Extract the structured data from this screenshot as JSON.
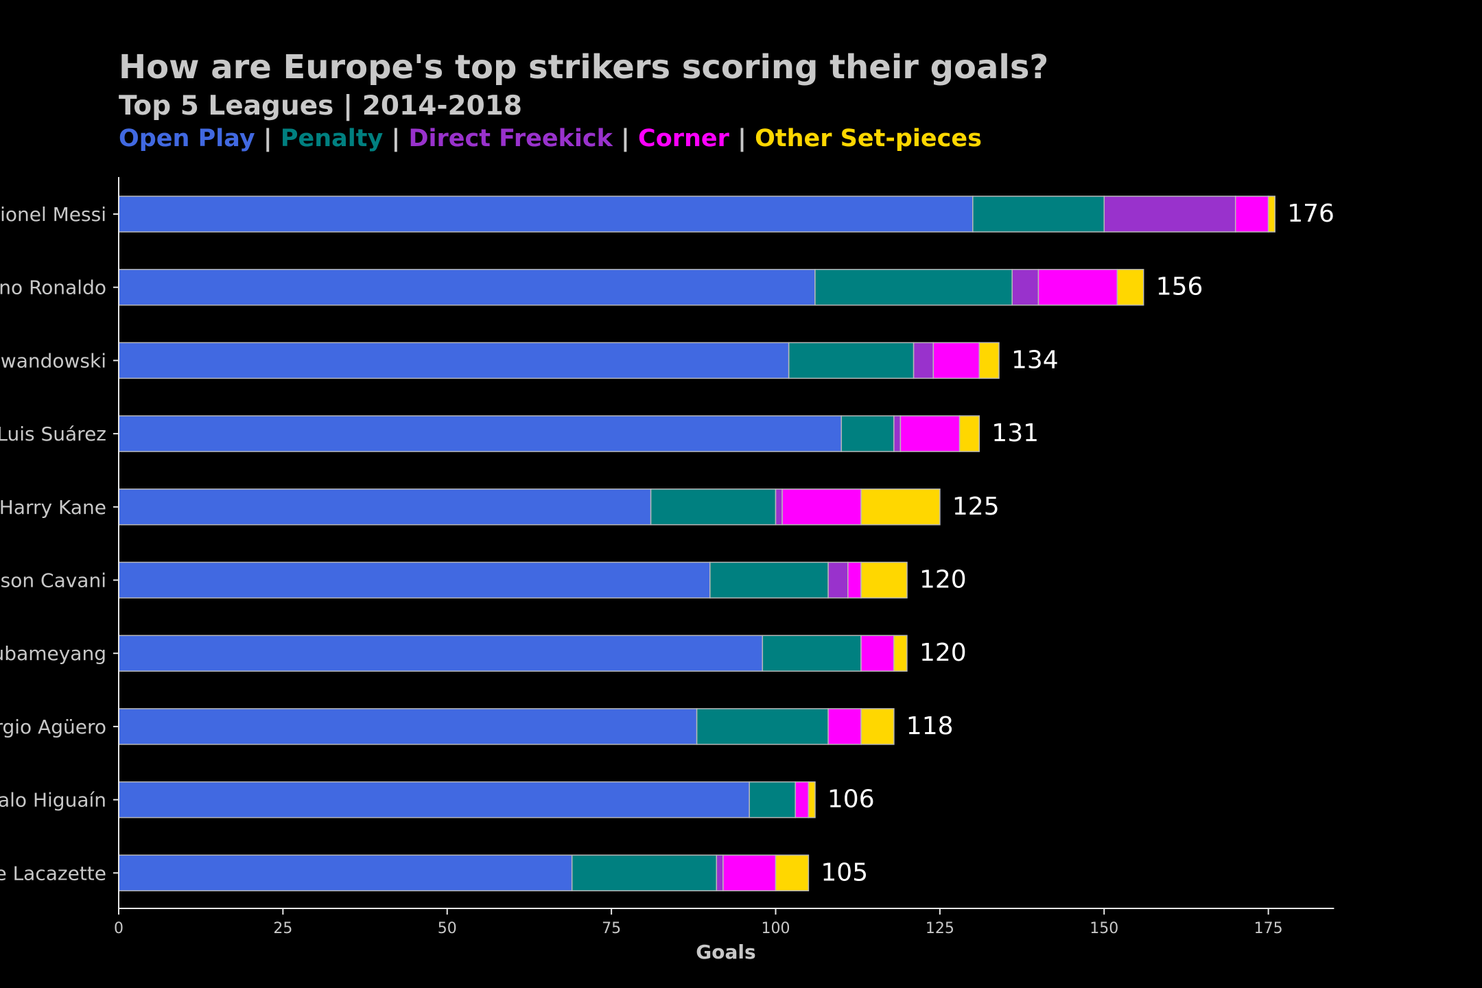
{
  "chart_data": {
    "type": "bar",
    "orientation": "horizontal",
    "stacked": true,
    "title": "How are Europe's top strikers scoring their goals?",
    "subtitle": "Top 5 Leagues | 2014-2018",
    "xlabel": "Goals",
    "ylabel": "",
    "xlim": [
      0,
      185
    ],
    "xticks": [
      0,
      25,
      50,
      75,
      100,
      125,
      150,
      175
    ],
    "grid": false,
    "legend_separator": "|",
    "categories": [
      "Lionel Messi",
      "Cristiano Ronaldo",
      "Robert Lewandowski",
      "Luis Suárez",
      "Harry Kane",
      "Edinson Cavani",
      "Pierre-Emerick Aubameyang",
      "Sergio Agüero",
      "Gonzalo Higuaín",
      "Alexandre Lacazette"
    ],
    "series": [
      {
        "name": "Open Play",
        "color": "#4169E1",
        "values": [
          130,
          106,
          102,
          110,
          81,
          90,
          98,
          88,
          96,
          69
        ]
      },
      {
        "name": "Penalty",
        "color": "#008080",
        "values": [
          20,
          30,
          19,
          8,
          19,
          18,
          15,
          20,
          7,
          22
        ]
      },
      {
        "name": "Direct Freekick",
        "color": "#9932CC",
        "values": [
          20,
          4,
          3,
          1,
          1,
          3,
          0,
          0,
          0,
          1
        ]
      },
      {
        "name": "Corner",
        "color": "#FF00FF",
        "values": [
          5,
          12,
          7,
          9,
          12,
          2,
          5,
          5,
          2,
          8
        ]
      },
      {
        "name": "Other Set-pieces",
        "color": "#FFD700",
        "values": [
          1,
          4,
          3,
          3,
          12,
          7,
          2,
          5,
          1,
          5
        ]
      }
    ],
    "totals": [
      "176",
      "156",
      "134",
      "131",
      "125",
      "120",
      "120",
      "118",
      "106",
      "105"
    ]
  }
}
